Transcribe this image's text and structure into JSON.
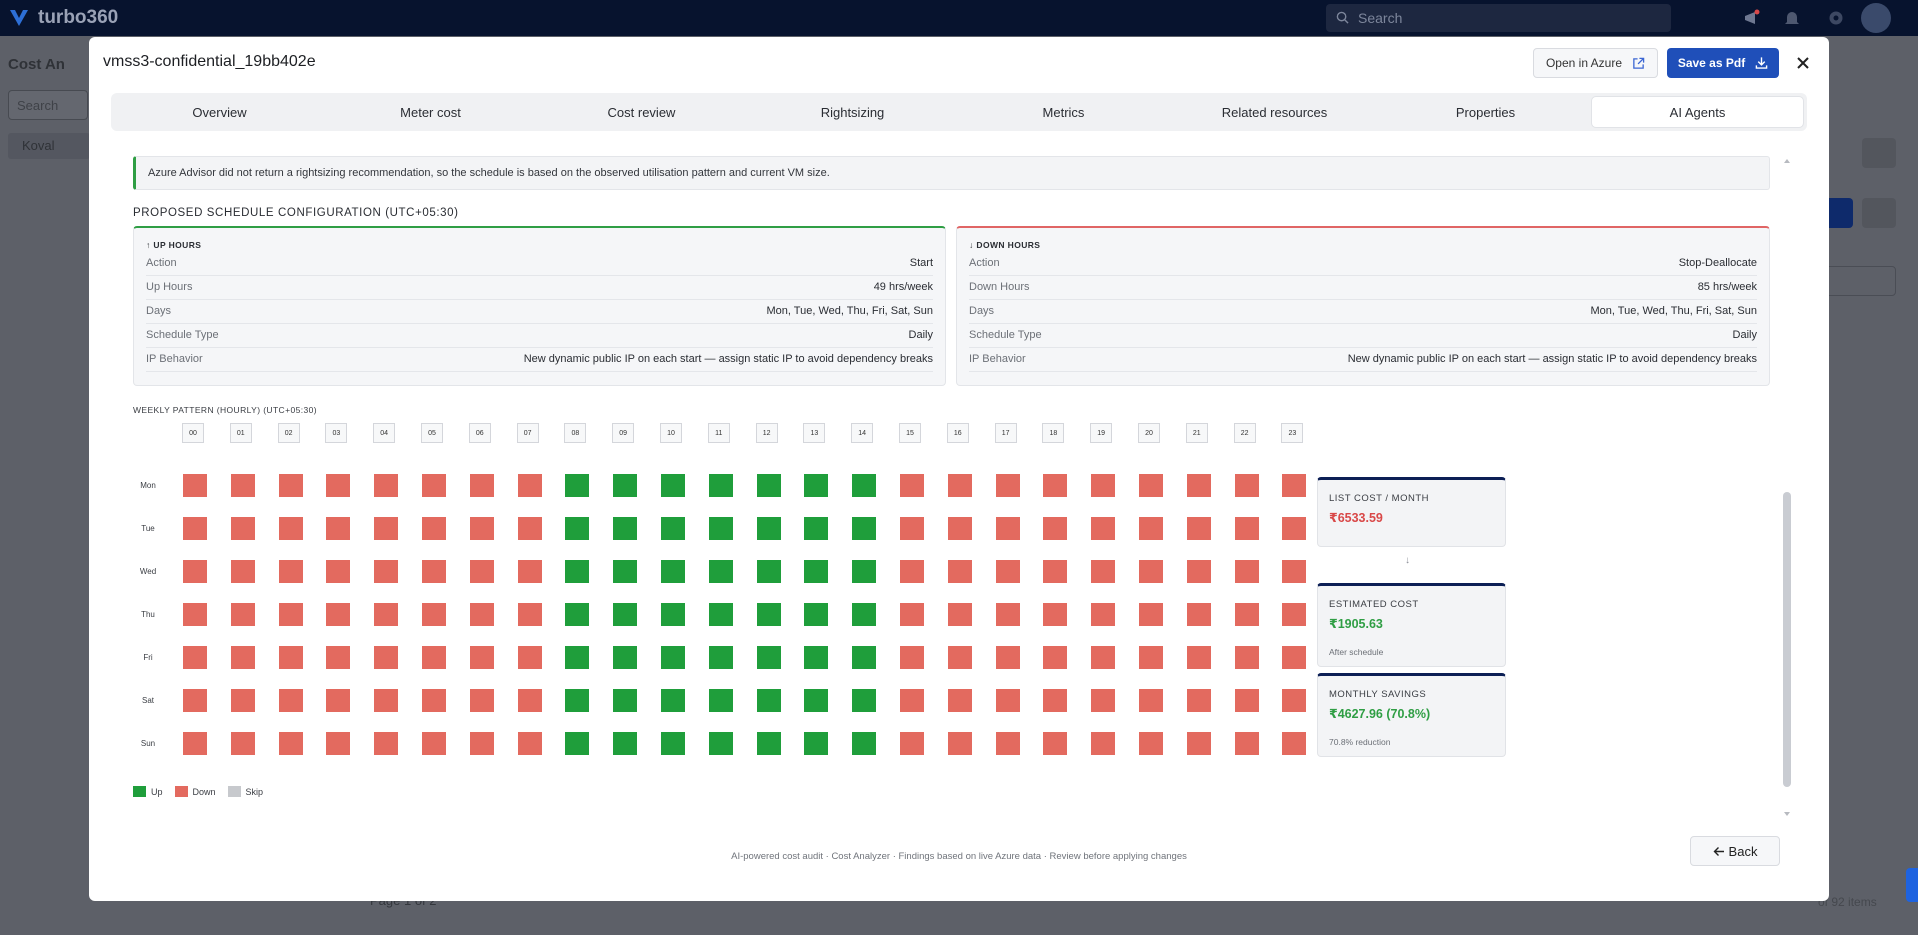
{
  "app": {
    "brand": "turbo360",
    "search_placeholder": "Search"
  },
  "background": {
    "page_title": "Cost An",
    "search_placeholder": "Search",
    "tree_item": "Koval",
    "pager": "Page 1 of 2",
    "count": "of 92 items"
  },
  "modal": {
    "title": "vmss3-confidential_19bb402e",
    "open_azure": "Open in Azure",
    "save_pdf": "Save as Pdf",
    "tabs": [
      "Overview",
      "Meter cost",
      "Cost review",
      "Rightsizing",
      "Metrics",
      "Related resources",
      "Properties",
      "AI Agents"
    ],
    "active_tab": "AI Agents",
    "info_text": "Azure Advisor did not return a rightsizing recommendation, so the schedule is based on the observed utilisation pattern and current VM size.",
    "schedule_heading": "PROPOSED SCHEDULE CONFIGURATION (UTC+05:30)",
    "up": {
      "heading": "↑ UP HOURS",
      "rows": [
        {
          "k": "Action",
          "v": "Start"
        },
        {
          "k": "Up Hours",
          "v": "49 hrs/week"
        },
        {
          "k": "Days",
          "v": "Mon, Tue, Wed, Thu, Fri, Sat, Sun"
        },
        {
          "k": "Schedule Type",
          "v": "Daily"
        },
        {
          "k": "IP Behavior",
          "v": "New dynamic public IP on each start — assign static IP to avoid dependency breaks"
        }
      ]
    },
    "down": {
      "heading": "↓ DOWN HOURS",
      "rows": [
        {
          "k": "Action",
          "v": "Stop-Deallocate"
        },
        {
          "k": "Down Hours",
          "v": "85 hrs/week"
        },
        {
          "k": "Days",
          "v": "Mon, Tue, Wed, Thu, Fri, Sat, Sun"
        },
        {
          "k": "Schedule Type",
          "v": "Daily"
        },
        {
          "k": "IP Behavior",
          "v": "New dynamic public IP on each start — assign static IP to avoid dependency breaks"
        }
      ]
    },
    "pattern_heading": "WEEKLY PATTERN (HOURLY) (UTC+05:30)",
    "hours": [
      "00",
      "01",
      "02",
      "03",
      "04",
      "05",
      "06",
      "07",
      "08",
      "09",
      "10",
      "11",
      "12",
      "13",
      "14",
      "15",
      "16",
      "17",
      "18",
      "19",
      "20",
      "21",
      "22",
      "23"
    ],
    "days": [
      "Mon",
      "Tue",
      "Wed",
      "Thu",
      "Fri",
      "Sat",
      "Sun"
    ],
    "up_hour_start": 8,
    "up_hour_end": 14,
    "legend": {
      "up": "Up",
      "down": "Down",
      "skip": "Skip"
    },
    "colors": {
      "up": "#1f9e3b",
      "down": "#e36a5f",
      "skip": "#c7c9cd",
      "primary": "#1f4fb9",
      "card_accent": "#0c1f55",
      "list_cost": "#d94848",
      "savings": "#2f9e44"
    },
    "cards": {
      "list_label": "LIST COST / MONTH",
      "list_value": "₹6533.59",
      "arrow": "↓",
      "est_label": "ESTIMATED COST",
      "est_value": "₹1905.63",
      "est_sub": "After schedule",
      "save_label": "MONTHLY SAVINGS",
      "save_value": "₹4627.96 (70.8%)",
      "save_sub": "70.8% reduction"
    },
    "footer": "AI-powered cost audit · Cost Analyzer · Findings based on live Azure data · Review before applying changes",
    "back": "Back"
  }
}
